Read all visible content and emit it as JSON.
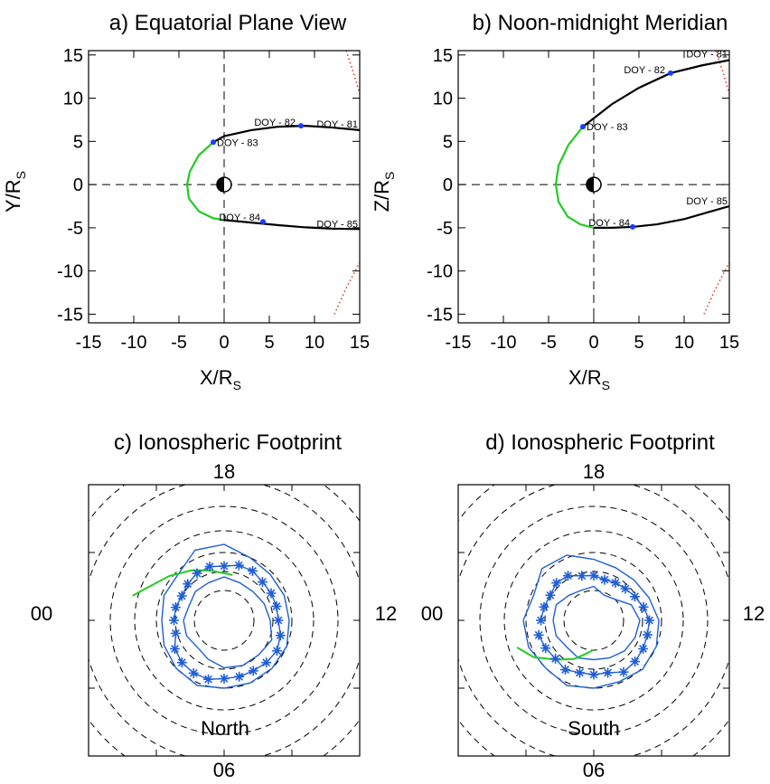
{
  "colors": {
    "trajectory": "#000000",
    "green_segment": "#22cc22",
    "doy_marker": "#1a3cff",
    "magnetopause": "#e03020",
    "footprint": "#1f5fd6",
    "grid": "#000000"
  },
  "chart_data": [
    {
      "panel": "a",
      "type": "line",
      "title": "a) Equatorial Plane View",
      "xlabel": "X/R",
      "xlabel_sub": "S",
      "ylabel": "Y/R",
      "ylabel_sub": "S",
      "xlim": [
        -15,
        15
      ],
      "ylim": [
        -16,
        15.5
      ],
      "xticks": [
        -15,
        -10,
        -5,
        0,
        5,
        10,
        15
      ],
      "yticks": [
        15,
        10,
        5,
        0,
        -5,
        -10,
        -15
      ],
      "xtick_labels": [
        "-15",
        "-10",
        "-5",
        "0",
        "5",
        "10",
        "15"
      ],
      "ytick_labels": [
        "15",
        "10",
        "5",
        "0",
        "-5",
        "-10",
        "-15"
      ],
      "trajectory_black": [
        [
          15,
          6.3
        ],
        [
          12,
          6.6
        ],
        [
          9,
          6.8
        ],
        [
          6,
          6.7
        ],
        [
          3,
          6.3
        ],
        [
          0,
          5.6
        ],
        [
          -1.2,
          4.9
        ]
      ],
      "trajectory_green": [
        [
          -1.2,
          4.9
        ],
        [
          -2.8,
          3.4
        ],
        [
          -3.8,
          1.5
        ],
        [
          -4.1,
          0
        ],
        [
          -3.9,
          -1.6
        ],
        [
          -2.8,
          -3.1
        ],
        [
          -1.2,
          -3.9
        ],
        [
          0,
          -4.1
        ]
      ],
      "trajectory_black_2": [
        [
          0,
          -4.1
        ],
        [
          3,
          -4.4
        ],
        [
          6,
          -4.7
        ],
        [
          9,
          -4.95
        ],
        [
          12,
          -5.1
        ],
        [
          15,
          -5.15
        ]
      ],
      "doy_points": [
        {
          "label": "DOY - 81",
          "x": 15.0,
          "y": 6.4,
          "marker": false
        },
        {
          "label": "DOY - 82",
          "x": 8.5,
          "y": 6.8,
          "marker": true
        },
        {
          "label": "DOY - 83",
          "x": -1.2,
          "y": 4.9,
          "marker": true
        },
        {
          "label": "DOY - 84",
          "x": 4.3,
          "y": -4.3,
          "marker": true
        },
        {
          "label": "DOY - 85",
          "x": 15.0,
          "y": -5.15,
          "marker": false
        }
      ],
      "magnetopause": [
        [
          13.5,
          15.5
        ],
        [
          14.3,
          13
        ],
        [
          15,
          10.5
        ]
      ],
      "magnetopause_2": [
        [
          12.2,
          -15
        ],
        [
          13.5,
          -12
        ],
        [
          15,
          -9
        ]
      ]
    },
    {
      "panel": "b",
      "type": "line",
      "title": "b) Noon-midnight Meridian",
      "xlabel": "X/R",
      "xlabel_sub": "S",
      "ylabel": "Z/R",
      "ylabel_sub": "S",
      "xlim": [
        -15,
        15
      ],
      "ylim": [
        -16,
        15.5
      ],
      "xticks": [
        -15,
        -10,
        -5,
        0,
        5,
        10,
        15
      ],
      "yticks": [
        15,
        10,
        5,
        0,
        -5,
        -10,
        -15
      ],
      "xtick_labels": [
        "-15",
        "-10",
        "-5",
        "0",
        "5",
        "10",
        "15"
      ],
      "ytick_labels": [
        "15",
        "10",
        "5",
        "0",
        "-5",
        "-10",
        "-15"
      ],
      "trajectory_black": [
        [
          15,
          14.4
        ],
        [
          12,
          13.8
        ],
        [
          8.5,
          12.9
        ],
        [
          5,
          11.2
        ],
        [
          2,
          9.3
        ],
        [
          -1.2,
          6.7
        ]
      ],
      "trajectory_green": [
        [
          -1.2,
          6.7
        ],
        [
          -2.8,
          4.6
        ],
        [
          -3.9,
          2.2
        ],
        [
          -4.2,
          0
        ],
        [
          -3.9,
          -2
        ],
        [
          -2.9,
          -3.7
        ],
        [
          -1.5,
          -4.6
        ],
        [
          0,
          -5
        ]
      ],
      "trajectory_black_2": [
        [
          0,
          -5
        ],
        [
          2,
          -5.0
        ],
        [
          4.3,
          -4.9
        ],
        [
          7,
          -4.6
        ],
        [
          10,
          -4.0
        ],
        [
          13,
          -3.1
        ],
        [
          15,
          -2.5
        ]
      ],
      "doy_points": [
        {
          "label": "DOY - 81",
          "x": 15.0,
          "y": 14.5,
          "marker": false
        },
        {
          "label": "DOY - 82",
          "x": 8.5,
          "y": 12.9,
          "marker": true
        },
        {
          "label": "DOY - 83",
          "x": -1.2,
          "y": 6.7,
          "marker": true
        },
        {
          "label": "DOY - 84",
          "x": 4.3,
          "y": -4.9,
          "marker": true
        },
        {
          "label": "DOY - 85",
          "x": 15.0,
          "y": -2.5,
          "marker": false
        }
      ],
      "magnetopause": [
        [
          13.5,
          15.5
        ],
        [
          14.3,
          13
        ],
        [
          15,
          10.5
        ]
      ],
      "magnetopause_2": [
        [
          12.2,
          -15
        ],
        [
          13.5,
          -12
        ],
        [
          15,
          -9
        ]
      ]
    },
    {
      "panel": "c",
      "type": "scatter",
      "title": "c) Ionospheric Footprint",
      "hemisphere": "North",
      "clock_labels": {
        "top": "18",
        "bottom": "06",
        "left": "00",
        "right": "12"
      },
      "ring_radii": [
        0.11,
        0.18,
        0.25,
        0.33,
        0.42,
        0.52,
        0.62
      ],
      "star_points": [
        [
          0.185,
          1.0
        ],
        [
          0.21,
          2.0
        ],
        [
          0.22,
          3.0
        ],
        [
          0.225,
          4.0
        ],
        [
          0.225,
          5.0
        ],
        [
          0.215,
          6.0
        ],
        [
          0.215,
          7.0
        ],
        [
          0.215,
          8.0
        ],
        [
          0.22,
          9.0
        ],
        [
          0.225,
          10.0
        ],
        [
          0.215,
          11.0
        ],
        [
          0.2,
          12.0
        ],
        [
          0.2,
          13.0
        ],
        [
          0.2,
          14.0
        ],
        [
          0.2,
          15.0
        ],
        [
          0.21,
          16.0
        ],
        [
          0.21,
          17.0
        ],
        [
          0.2,
          18.0
        ],
        [
          0.205,
          19.0
        ],
        [
          0.2,
          20.0
        ],
        [
          0.19,
          21.0
        ],
        [
          0.18,
          22.0
        ],
        [
          0.185,
          23.0
        ],
        [
          0.185,
          24.0
        ]
      ],
      "outer_boundary": [
        [
          0.23,
          0.0
        ],
        [
          0.24,
          1.5
        ],
        [
          0.25,
          3.0
        ],
        [
          0.26,
          4.5
        ],
        [
          0.25,
          6.0
        ],
        [
          0.25,
          7.5
        ],
        [
          0.25,
          9.0
        ],
        [
          0.25,
          10.5
        ],
        [
          0.24,
          12.0
        ],
        [
          0.24,
          13.5
        ],
        [
          0.24,
          15.0
        ],
        [
          0.25,
          16.5
        ],
        [
          0.28,
          18.0
        ],
        [
          0.28,
          19.5
        ],
        [
          0.24,
          21.0
        ],
        [
          0.24,
          22.5
        ],
        [
          0.23,
          24.0
        ]
      ],
      "inner_boundary": [
        [
          0.15,
          0.0
        ],
        [
          0.15,
          1.5
        ],
        [
          0.14,
          3.0
        ],
        [
          0.155,
          4.5
        ],
        [
          0.175,
          6.0
        ],
        [
          0.18,
          7.5
        ],
        [
          0.18,
          9.0
        ],
        [
          0.19,
          10.5
        ],
        [
          0.17,
          12.0
        ],
        [
          0.16,
          13.5
        ],
        [
          0.15,
          15.0
        ],
        [
          0.15,
          16.5
        ],
        [
          0.16,
          18.0
        ],
        [
          0.15,
          19.5
        ],
        [
          0.15,
          21.0
        ],
        [
          0.14,
          22.5
        ],
        [
          0.15,
          24.0
        ]
      ],
      "green_track": [
        [
          0.17,
          17.3
        ],
        [
          0.19,
          19.0
        ],
        [
          0.22,
          20.2
        ],
        [
          0.26,
          21.4
        ],
        [
          0.31,
          22.5
        ],
        [
          0.35,
          23.0
        ]
      ]
    },
    {
      "panel": "d",
      "type": "scatter",
      "title": "d) Ionospheric Footprint",
      "hemisphere": "South",
      "clock_labels": {
        "top": "18",
        "bottom": "06",
        "left": "00",
        "right": "12"
      },
      "ring_radii": [
        0.11,
        0.18,
        0.25,
        0.33,
        0.42,
        0.52,
        0.62
      ],
      "star_points": [
        [
          0.21,
          1.0
        ],
        [
          0.205,
          2.0
        ],
        [
          0.2,
          3.0
        ],
        [
          0.21,
          4.0
        ],
        [
          0.2,
          5.0
        ],
        [
          0.2,
          6.0
        ],
        [
          0.2,
          7.0
        ],
        [
          0.22,
          8.0
        ],
        [
          0.215,
          9.0
        ],
        [
          0.21,
          10.0
        ],
        [
          0.205,
          11.0
        ],
        [
          0.205,
          12.0
        ],
        [
          0.19,
          13.0
        ],
        [
          0.175,
          14.0
        ],
        [
          0.165,
          15.0
        ],
        [
          0.16,
          16.0
        ],
        [
          0.155,
          17.0
        ],
        [
          0.165,
          18.0
        ],
        [
          0.17,
          19.0
        ],
        [
          0.19,
          20.0
        ],
        [
          0.195,
          21.0
        ],
        [
          0.185,
          22.0
        ],
        [
          0.19,
          23.0
        ],
        [
          0.195,
          24.0
        ]
      ],
      "outer_boundary": [
        [
          0.26,
          0.0
        ],
        [
          0.26,
          1.5
        ],
        [
          0.25,
          3.0
        ],
        [
          0.26,
          4.5
        ],
        [
          0.25,
          6.0
        ],
        [
          0.245,
          7.5
        ],
        [
          0.255,
          9.0
        ],
        [
          0.25,
          10.5
        ],
        [
          0.24,
          12.0
        ],
        [
          0.22,
          13.5
        ],
        [
          0.21,
          15.0
        ],
        [
          0.21,
          16.5
        ],
        [
          0.225,
          18.0
        ],
        [
          0.26,
          19.5
        ],
        [
          0.27,
          21.0
        ],
        [
          0.24,
          22.5
        ],
        [
          0.26,
          24.0
        ]
      ],
      "inner_boundary": [
        [
          0.15,
          0.0
        ],
        [
          0.15,
          1.5
        ],
        [
          0.14,
          3.0
        ],
        [
          0.15,
          4.5
        ],
        [
          0.145,
          6.0
        ],
        [
          0.15,
          7.5
        ],
        [
          0.16,
          9.0
        ],
        [
          0.165,
          10.5
        ],
        [
          0.17,
          12.0
        ],
        [
          0.15,
          13.5
        ],
        [
          0.11,
          15.0
        ],
        [
          0.1,
          16.5
        ],
        [
          0.125,
          18.0
        ],
        [
          0.12,
          19.5
        ],
        [
          0.13,
          21.0
        ],
        [
          0.15,
          22.5
        ],
        [
          0.15,
          24.0
        ]
      ],
      "green_track": [
        [
          0.3,
          1.3
        ],
        [
          0.26,
          2.1
        ],
        [
          0.2,
          3.1
        ],
        [
          0.16,
          4.2
        ],
        [
          0.125,
          5.2
        ],
        [
          0.11,
          5.9
        ]
      ]
    }
  ]
}
